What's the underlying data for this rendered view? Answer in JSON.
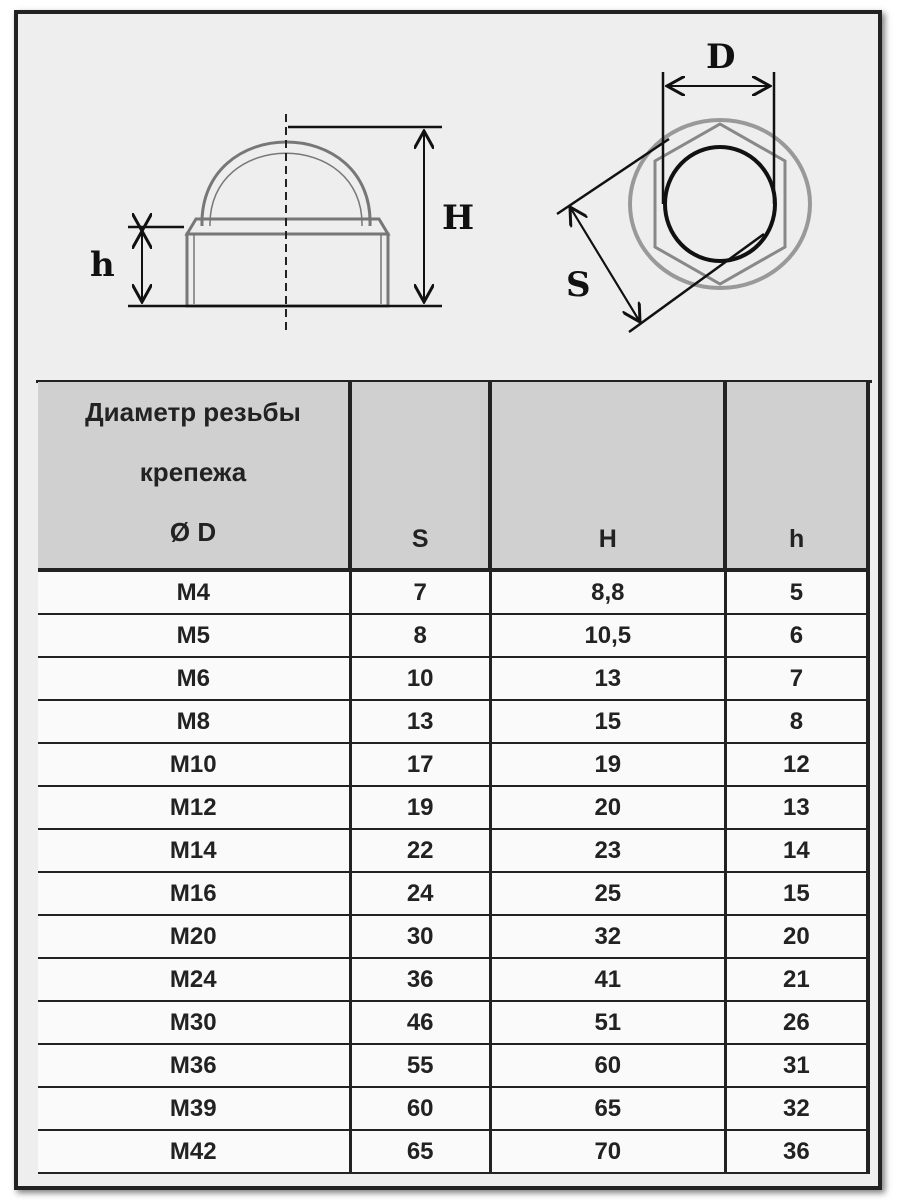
{
  "diagram": {
    "labels": {
      "H": "H",
      "h": "h",
      "D": "D",
      "S": "S"
    }
  },
  "table": {
    "headers": {
      "diameter_line1": "Диаметр резьбы",
      "diameter_line2": "крепежа",
      "diameter_line3": "Ø D",
      "s": "S",
      "H": "H",
      "h": "h"
    },
    "rows": [
      [
        "M4",
        "7",
        "8,8",
        "5"
      ],
      [
        "M5",
        "8",
        "10,5",
        "6"
      ],
      [
        "M6",
        "10",
        "13",
        "7"
      ],
      [
        "M8",
        "13",
        "15",
        "8"
      ],
      [
        "M10",
        "17",
        "19",
        "12"
      ],
      [
        "M12",
        "19",
        "20",
        "13"
      ],
      [
        "M14",
        "22",
        "23",
        "14"
      ],
      [
        "M16",
        "24",
        "25",
        "15"
      ],
      [
        "M20",
        "30",
        "32",
        "20"
      ],
      [
        "M24",
        "36",
        "41",
        "21"
      ],
      [
        "M30",
        "46",
        "51",
        "26"
      ],
      [
        "M36",
        "55",
        "60",
        "31"
      ],
      [
        "M39",
        "60",
        "65",
        "32"
      ],
      [
        "M42",
        "65",
        "70",
        "36"
      ]
    ]
  }
}
